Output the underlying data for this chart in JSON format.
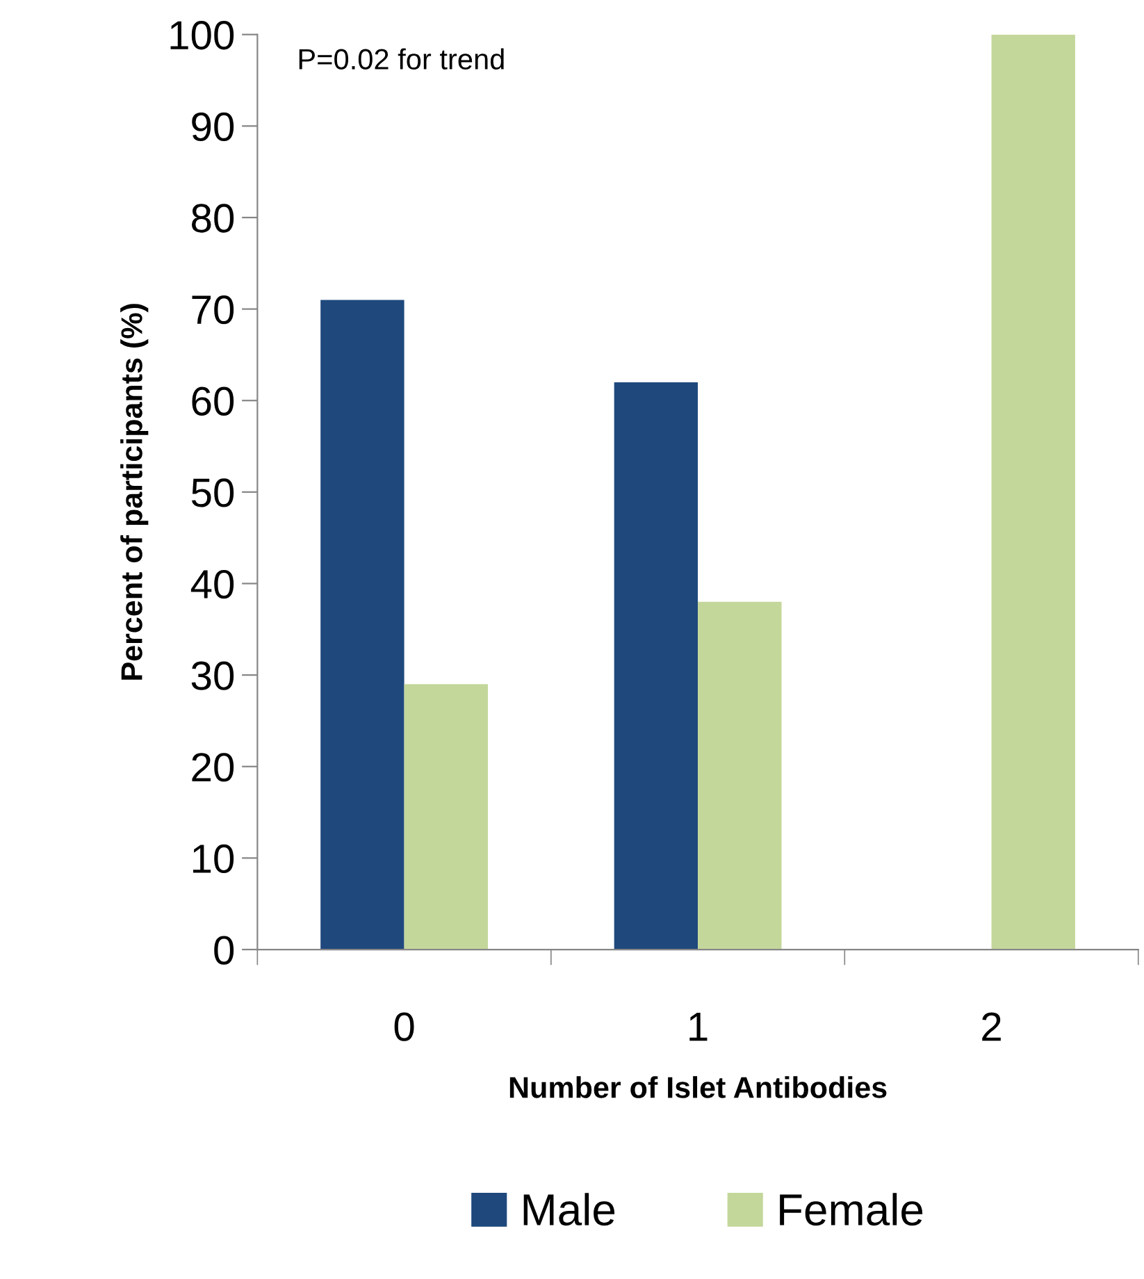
{
  "chart_data": {
    "type": "bar",
    "xlabel": "Number of Islet Antibodies",
    "ylabel": "Percent of participants (%)",
    "categories": [
      "0",
      "1",
      "2"
    ],
    "series": [
      {
        "name": "Male",
        "color": "#1f497d",
        "values": [
          71,
          62,
          0
        ]
      },
      {
        "name": "Female",
        "color": "#c4d79b",
        "values": [
          29,
          38,
          100
        ]
      }
    ],
    "ylim": [
      0,
      100
    ],
    "yticks": [
      0,
      10,
      20,
      30,
      40,
      50,
      60,
      70,
      80,
      90,
      100
    ],
    "annotations": [
      "P=0.02 for trend"
    ],
    "grid": false,
    "legend": "bottom"
  }
}
